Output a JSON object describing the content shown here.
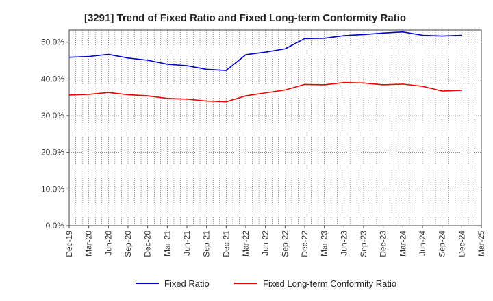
{
  "chart_data": {
    "type": "line",
    "title": "[3291]  Trend of Fixed Ratio and Fixed Long-term Conformity Ratio",
    "xlabel": "",
    "ylabel": "",
    "ylim": [
      0,
      53.3
    ],
    "y_ticks": [
      "0.0%",
      "10.0%",
      "20.0%",
      "30.0%",
      "40.0%",
      "50.0%"
    ],
    "y_tick_values": [
      0,
      10,
      20,
      30,
      40,
      50
    ],
    "x_tick_labels": [
      "Dec-19",
      "Mar-20",
      "Jun-20",
      "Sep-20",
      "Dec-20",
      "Mar-21",
      "Jun-21",
      "Sep-21",
      "Dec-21",
      "Mar-22",
      "Jun-22",
      "Sep-22",
      "Dec-22",
      "Mar-23",
      "Jun-23",
      "Sep-23",
      "Dec-23",
      "Mar-24",
      "Jun-24",
      "Sep-24",
      "Dec-24",
      "Mar-25"
    ],
    "x": [
      "Dec-19",
      "Mar-20",
      "Jun-20",
      "Sep-20",
      "Dec-20",
      "Mar-21",
      "Jun-21",
      "Sep-21",
      "Dec-21",
      "Mar-22",
      "Jun-22",
      "Sep-22",
      "Dec-22",
      "Mar-23",
      "Jun-23",
      "Sep-23",
      "Dec-23",
      "Mar-24",
      "Jun-24",
      "Sep-24",
      "Dec-24"
    ],
    "grid": true,
    "legend_position": "bottom",
    "series": [
      {
        "name": "Fixed Ratio",
        "color": "#0000cc",
        "values": [
          45.9,
          46.1,
          46.7,
          45.7,
          45.1,
          44.0,
          43.6,
          42.6,
          42.3,
          46.6,
          47.3,
          48.2,
          51.0,
          51.1,
          51.8,
          52.1,
          52.5,
          52.8,
          51.9,
          51.7,
          51.9
        ]
      },
      {
        "name": "Fixed Long-term Conformity Ratio",
        "color": "#ee0000",
        "values": [
          35.6,
          35.8,
          36.3,
          35.7,
          35.4,
          34.7,
          34.5,
          34.0,
          33.8,
          35.4,
          36.2,
          37.0,
          38.5,
          38.4,
          39.0,
          38.9,
          38.4,
          38.6,
          38.0,
          36.7,
          36.9
        ]
      }
    ]
  }
}
